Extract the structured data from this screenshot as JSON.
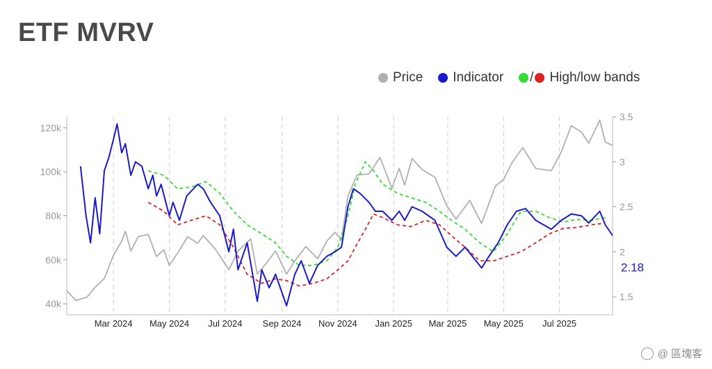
{
  "title": "ETF MVRV",
  "watermark": "@ 區塊客",
  "chart_data": {
    "type": "line",
    "x_type": "date",
    "x_range": [
      "2024-01-10",
      "2025-08-28"
    ],
    "left_axis": {
      "ticks": [
        40000,
        60000,
        80000,
        100000,
        120000
      ],
      "tick_labels": [
        "40k",
        "60k",
        "80k",
        "100k",
        "120k"
      ],
      "range": [
        35000,
        125000
      ]
    },
    "right_axis": {
      "ticks": [
        1.5,
        2,
        2.5,
        3,
        3.5
      ],
      "tick_labels": [
        "1.5",
        "2",
        "2.5",
        "3",
        "3.5"
      ],
      "range": [
        1.3,
        3.5
      ]
    },
    "x_ticks": [
      {
        "date": "2024-03-01",
        "label": "Mar 2024"
      },
      {
        "date": "2024-05-01",
        "label": "May 2024"
      },
      {
        "date": "2024-07-01",
        "label": "Jul 2024"
      },
      {
        "date": "2024-09-01",
        "label": "Sep 2024"
      },
      {
        "date": "2024-11-01",
        "label": "Nov 2024"
      },
      {
        "date": "2025-01-01",
        "label": "Jan 2025"
      },
      {
        "date": "2025-03-01",
        "label": "Mar 2025"
      },
      {
        "date": "2025-05-01",
        "label": "May 2025"
      },
      {
        "date": "2025-07-01",
        "label": "Jul 2025"
      }
    ],
    "grid": "vertical dashed",
    "legend_position": "top-right",
    "last_value_label": "2.18",
    "series": [
      {
        "name": "Price",
        "axis": "left",
        "color": "#b0b0b0",
        "points": [
          [
            "2024-01-10",
            46000
          ],
          [
            "2024-01-20",
            41500
          ],
          [
            "2024-02-01",
            43000
          ],
          [
            "2024-02-10",
            47500
          ],
          [
            "2024-02-20",
            51500
          ],
          [
            "2024-03-01",
            62000
          ],
          [
            "2024-03-10",
            68500
          ],
          [
            "2024-03-14",
            73000
          ],
          [
            "2024-03-20",
            64000
          ],
          [
            "2024-03-28",
            70500
          ],
          [
            "2024-04-08",
            71500
          ],
          [
            "2024-04-17",
            61500
          ],
          [
            "2024-04-25",
            64500
          ],
          [
            "2024-05-01",
            57500
          ],
          [
            "2024-05-10",
            63000
          ],
          [
            "2024-05-21",
            70500
          ],
          [
            "2024-06-01",
            67500
          ],
          [
            "2024-06-07",
            71000
          ],
          [
            "2024-06-20",
            65000
          ],
          [
            "2024-07-05",
            55500
          ],
          [
            "2024-07-15",
            64000
          ],
          [
            "2024-07-29",
            69500
          ],
          [
            "2024-08-05",
            53500
          ],
          [
            "2024-08-15",
            58500
          ],
          [
            "2024-08-25",
            64000
          ],
          [
            "2024-09-06",
            53500
          ],
          [
            "2024-09-15",
            59500
          ],
          [
            "2024-09-27",
            66000
          ],
          [
            "2024-10-10",
            60500
          ],
          [
            "2024-10-20",
            68500
          ],
          [
            "2024-10-29",
            72500
          ],
          [
            "2024-11-05",
            69000
          ],
          [
            "2024-11-12",
            89000
          ],
          [
            "2024-11-22",
            98500
          ],
          [
            "2024-12-05",
            99000
          ],
          [
            "2024-12-17",
            106500
          ],
          [
            "2024-12-30",
            92500
          ],
          [
            "2025-01-07",
            101500
          ],
          [
            "2025-01-13",
            94000
          ],
          [
            "2025-01-21",
            106000
          ],
          [
            "2025-02-01",
            101000
          ],
          [
            "2025-02-15",
            97500
          ],
          [
            "2025-02-28",
            84500
          ],
          [
            "2025-03-10",
            78500
          ],
          [
            "2025-03-25",
            87000
          ],
          [
            "2025-04-07",
            76500
          ],
          [
            "2025-04-22",
            93500
          ],
          [
            "2025-05-01",
            96500
          ],
          [
            "2025-05-10",
            104000
          ],
          [
            "2025-05-22",
            111000
          ],
          [
            "2025-06-05",
            101500
          ],
          [
            "2025-06-22",
            100500
          ],
          [
            "2025-07-03",
            109000
          ],
          [
            "2025-07-14",
            121000
          ],
          [
            "2025-07-25",
            118000
          ],
          [
            "2025-08-02",
            113000
          ],
          [
            "2025-08-14",
            123500
          ],
          [
            "2025-08-20",
            113500
          ],
          [
            "2025-08-28",
            112000
          ]
        ]
      },
      {
        "name": "Indicator",
        "axis": "right",
        "color": "#1a1acc",
        "points": [
          [
            "2024-01-25",
            2.95
          ],
          [
            "2024-01-31",
            2.4
          ],
          [
            "2024-02-05",
            2.1
          ],
          [
            "2024-02-10",
            2.6
          ],
          [
            "2024-02-15",
            2.2
          ],
          [
            "2024-02-20",
            2.9
          ],
          [
            "2024-02-25",
            3.05
          ],
          [
            "2024-03-01",
            3.25
          ],
          [
            "2024-03-05",
            3.42
          ],
          [
            "2024-03-10",
            3.1
          ],
          [
            "2024-03-14",
            3.2
          ],
          [
            "2024-03-20",
            2.85
          ],
          [
            "2024-03-25",
            3.0
          ],
          [
            "2024-04-01",
            2.95
          ],
          [
            "2024-04-08",
            2.7
          ],
          [
            "2024-04-13",
            2.85
          ],
          [
            "2024-04-17",
            2.62
          ],
          [
            "2024-04-22",
            2.75
          ],
          [
            "2024-05-01",
            2.4
          ],
          [
            "2024-05-05",
            2.55
          ],
          [
            "2024-05-12",
            2.35
          ],
          [
            "2024-05-20",
            2.62
          ],
          [
            "2024-06-01",
            2.75
          ],
          [
            "2024-06-07",
            2.7
          ],
          [
            "2024-06-15",
            2.55
          ],
          [
            "2024-06-25",
            2.4
          ],
          [
            "2024-07-05",
            2.0
          ],
          [
            "2024-07-10",
            2.25
          ],
          [
            "2024-07-15",
            1.8
          ],
          [
            "2024-07-25",
            2.1
          ],
          [
            "2024-08-05",
            1.45
          ],
          [
            "2024-08-10",
            1.8
          ],
          [
            "2024-08-18",
            1.6
          ],
          [
            "2024-08-25",
            1.75
          ],
          [
            "2024-09-06",
            1.4
          ],
          [
            "2024-09-15",
            1.75
          ],
          [
            "2024-09-22",
            1.9
          ],
          [
            "2024-10-01",
            1.65
          ],
          [
            "2024-10-10",
            1.85
          ],
          [
            "2024-10-20",
            1.95
          ],
          [
            "2024-10-29",
            2.0
          ],
          [
            "2024-11-05",
            2.05
          ],
          [
            "2024-11-12",
            2.5
          ],
          [
            "2024-11-18",
            2.7
          ],
          [
            "2024-11-25",
            2.65
          ],
          [
            "2024-12-05",
            2.55
          ],
          [
            "2024-12-12",
            2.45
          ],
          [
            "2024-12-20",
            2.45
          ],
          [
            "2024-12-30",
            2.35
          ],
          [
            "2025-01-07",
            2.45
          ],
          [
            "2025-01-13",
            2.35
          ],
          [
            "2025-01-21",
            2.5
          ],
          [
            "2025-02-01",
            2.45
          ],
          [
            "2025-02-15",
            2.35
          ],
          [
            "2025-02-28",
            2.05
          ],
          [
            "2025-03-10",
            1.95
          ],
          [
            "2025-03-20",
            2.05
          ],
          [
            "2025-04-07",
            1.82
          ],
          [
            "2025-04-15",
            1.95
          ],
          [
            "2025-04-25",
            2.1
          ],
          [
            "2025-05-05",
            2.3
          ],
          [
            "2025-05-15",
            2.45
          ],
          [
            "2025-05-25",
            2.48
          ],
          [
            "2025-06-05",
            2.35
          ],
          [
            "2025-06-22",
            2.25
          ],
          [
            "2025-07-03",
            2.35
          ],
          [
            "2025-07-14",
            2.42
          ],
          [
            "2025-07-25",
            2.4
          ],
          [
            "2025-08-02",
            2.32
          ],
          [
            "2025-08-14",
            2.45
          ],
          [
            "2025-08-20",
            2.3
          ],
          [
            "2025-08-28",
            2.18
          ]
        ]
      },
      {
        "name": "High band",
        "axis": "right",
        "color": "#33dd33",
        "points": [
          [
            "2024-04-08",
            2.9
          ],
          [
            "2024-04-25",
            2.85
          ],
          [
            "2024-05-10",
            2.7
          ],
          [
            "2024-05-25",
            2.72
          ],
          [
            "2024-06-10",
            2.78
          ],
          [
            "2024-06-25",
            2.65
          ],
          [
            "2024-07-10",
            2.45
          ],
          [
            "2024-07-25",
            2.3
          ],
          [
            "2024-08-10",
            2.2
          ],
          [
            "2024-08-25",
            2.1
          ],
          [
            "2024-09-06",
            1.95
          ],
          [
            "2024-09-20",
            1.85
          ],
          [
            "2024-10-05",
            1.85
          ],
          [
            "2024-10-20",
            1.9
          ],
          [
            "2024-11-01",
            2.05
          ],
          [
            "2024-11-12",
            2.4
          ],
          [
            "2024-11-20",
            2.75
          ],
          [
            "2024-12-01",
            3.0
          ],
          [
            "2024-12-10",
            2.9
          ],
          [
            "2024-12-20",
            2.75
          ],
          [
            "2025-01-05",
            2.65
          ],
          [
            "2025-01-20",
            2.6
          ],
          [
            "2025-02-05",
            2.55
          ],
          [
            "2025-02-20",
            2.45
          ],
          [
            "2025-03-05",
            2.35
          ],
          [
            "2025-03-20",
            2.25
          ],
          [
            "2025-04-05",
            2.1
          ],
          [
            "2025-04-20",
            2.0
          ],
          [
            "2025-05-05",
            2.2
          ],
          [
            "2025-05-20",
            2.45
          ],
          [
            "2025-06-05",
            2.45
          ],
          [
            "2025-06-20",
            2.38
          ],
          [
            "2025-07-05",
            2.33
          ],
          [
            "2025-07-20",
            2.36
          ],
          [
            "2025-08-05",
            2.35
          ],
          [
            "2025-08-20",
            2.38
          ]
        ]
      },
      {
        "name": "Low band",
        "axis": "right",
        "color": "#dd2222",
        "points": [
          [
            "2024-04-08",
            2.55
          ],
          [
            "2024-04-25",
            2.45
          ],
          [
            "2024-05-10",
            2.3
          ],
          [
            "2024-05-25",
            2.35
          ],
          [
            "2024-06-10",
            2.4
          ],
          [
            "2024-06-25",
            2.3
          ],
          [
            "2024-07-10",
            2.05
          ],
          [
            "2024-07-25",
            1.75
          ],
          [
            "2024-08-10",
            1.65
          ],
          [
            "2024-08-25",
            1.7
          ],
          [
            "2024-09-06",
            1.68
          ],
          [
            "2024-09-20",
            1.62
          ],
          [
            "2024-10-05",
            1.65
          ],
          [
            "2024-10-20",
            1.7
          ],
          [
            "2024-11-01",
            1.8
          ],
          [
            "2024-11-12",
            1.9
          ],
          [
            "2024-11-20",
            2.05
          ],
          [
            "2024-12-01",
            2.25
          ],
          [
            "2024-12-10",
            2.42
          ],
          [
            "2024-12-20",
            2.38
          ],
          [
            "2025-01-05",
            2.3
          ],
          [
            "2025-01-20",
            2.28
          ],
          [
            "2025-02-05",
            2.35
          ],
          [
            "2025-02-20",
            2.3
          ],
          [
            "2025-03-05",
            2.18
          ],
          [
            "2025-03-20",
            2.05
          ],
          [
            "2025-04-05",
            1.9
          ],
          [
            "2025-04-20",
            1.9
          ],
          [
            "2025-05-05",
            1.95
          ],
          [
            "2025-05-20",
            2.0
          ],
          [
            "2025-06-05",
            2.1
          ],
          [
            "2025-06-20",
            2.2
          ],
          [
            "2025-07-05",
            2.26
          ],
          [
            "2025-07-20",
            2.27
          ],
          [
            "2025-08-05",
            2.3
          ],
          [
            "2025-08-20",
            2.32
          ]
        ]
      }
    ]
  },
  "legend": {
    "price": {
      "label": "Price",
      "color": "#b0b0b0"
    },
    "indicator": {
      "label": "Indicator",
      "color": "#1a1acc"
    },
    "bands": {
      "label": "High/low bands",
      "sep": "/",
      "high_color": "#33dd33",
      "low_color": "#dd2222"
    }
  }
}
